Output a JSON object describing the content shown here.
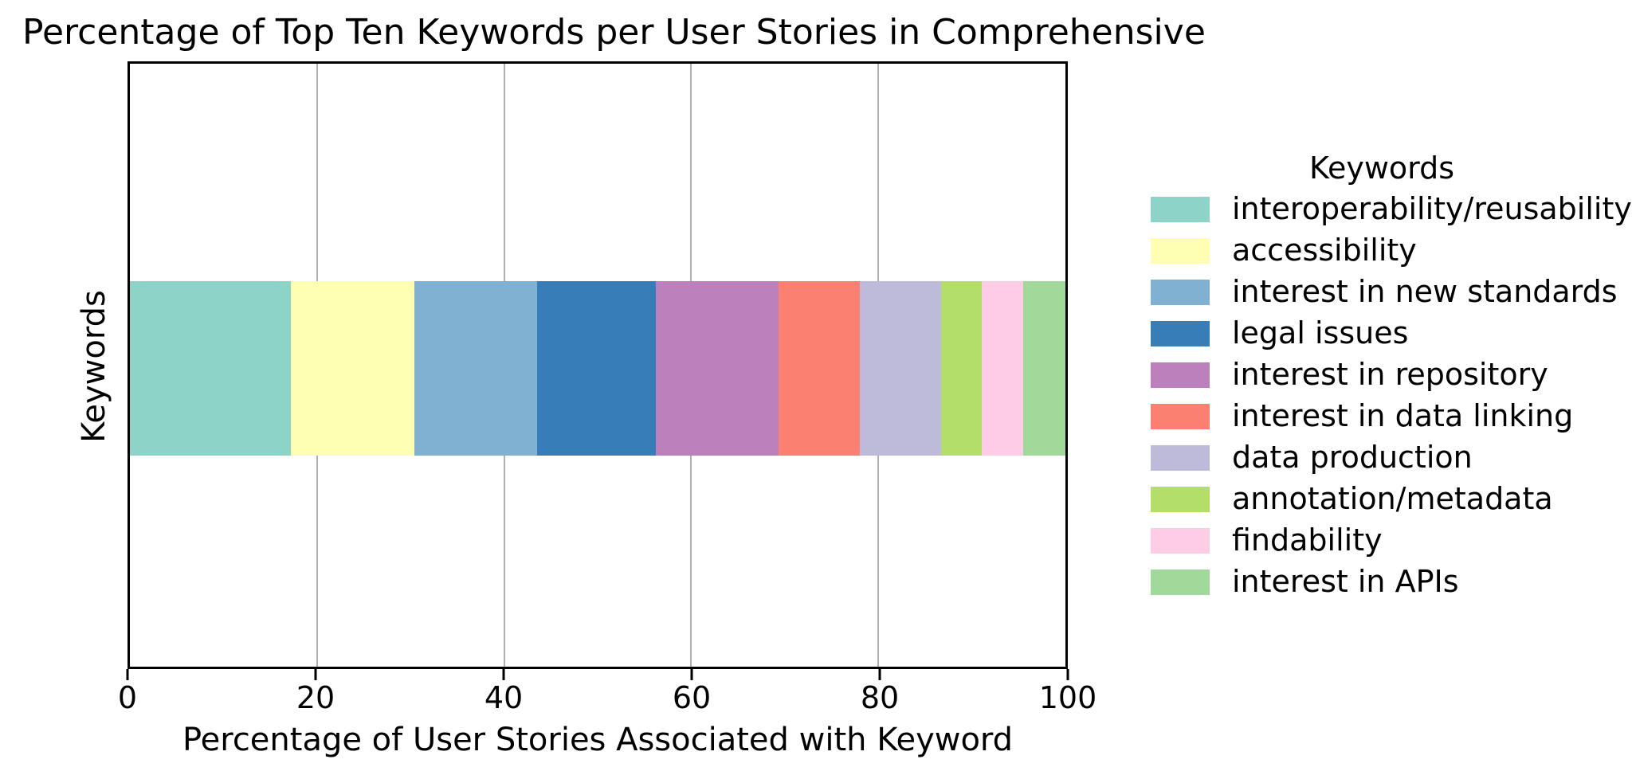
{
  "chart_data": {
    "type": "bar",
    "subtype": "horizontal-stacked",
    "title": "Percentage of Top Ten Keywords per User Stories in Comprehensive",
    "xlabel": "Percentage of User Stories Associated with Keyword",
    "ylabel": "Keywords",
    "legend_title": "Keywords",
    "legend_position": "right",
    "xlim": [
      0,
      100
    ],
    "x_ticks": [
      "0",
      "20",
      "40",
      "60",
      "80",
      "100"
    ],
    "grid": "vertical-gridlines-at-ticks",
    "grid_color": "#b0b0b0",
    "spine_color": "#000000",
    "background_color": "#ffffff",
    "categories": [
      "Keywords"
    ],
    "series": [
      {
        "name": "interoperability/reusability",
        "value": 17.2,
        "color": "#8dd3c7"
      },
      {
        "name": "accessibility",
        "value": 13.2,
        "color": "#ffffb3"
      },
      {
        "name": "interest in new standards",
        "value": 13.1,
        "color": "#80b1d3"
      },
      {
        "name": "legal issues",
        "value": 12.7,
        "color": "#377eb8"
      },
      {
        "name": "interest in repository",
        "value": 13.1,
        "color": "#bc80bd"
      },
      {
        "name": "interest in data linking",
        "value": 8.7,
        "color": "#fb8072"
      },
      {
        "name": "data production",
        "value": 8.7,
        "color": "#bebada"
      },
      {
        "name": "annotation/metadata",
        "value": 4.4,
        "color": "#b3de69"
      },
      {
        "name": "findability",
        "value": 4.4,
        "color": "#fccde5"
      },
      {
        "name": "interest in APIs",
        "value": 4.5,
        "color": "#a1d99b"
      }
    ]
  }
}
